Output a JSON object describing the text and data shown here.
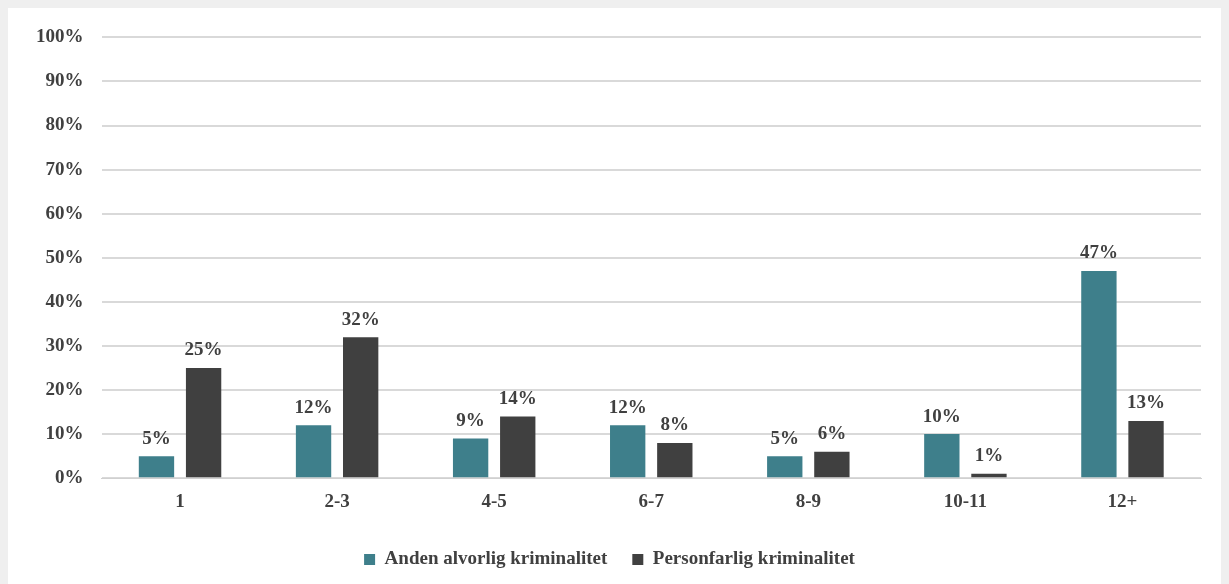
{
  "chart_data": {
    "type": "bar",
    "categories": [
      "1",
      "2-3",
      "4-5",
      "6-7",
      "8-9",
      "10-11",
      "12+"
    ],
    "series": [
      {
        "name": "Anden alvorlig kriminalitet",
        "color": "#3e7f8b",
        "values": [
          5,
          12,
          9,
          12,
          5,
          10,
          47
        ],
        "value_labels": [
          "5%",
          "12%",
          "9%",
          "12%",
          "5%",
          "10%",
          "47%"
        ]
      },
      {
        "name": "Personfarlig kriminalitet",
        "color": "#404040",
        "values": [
          25,
          32,
          14,
          8,
          6,
          1,
          13
        ],
        "value_labels": [
          "25%",
          "32%",
          "14%",
          "8%",
          "6%",
          "1%",
          "13%"
        ]
      }
    ],
    "ylim": [
      0,
      100
    ],
    "yticks": [
      {
        "value": 0,
        "label": "0%"
      },
      {
        "value": 10,
        "label": "10%"
      },
      {
        "value": 20,
        "label": "20%"
      },
      {
        "value": 30,
        "label": "30%"
      },
      {
        "value": 40,
        "label": "40%"
      },
      {
        "value": 50,
        "label": "50%"
      },
      {
        "value": 60,
        "label": "60%"
      },
      {
        "value": 70,
        "label": "70%"
      },
      {
        "value": 80,
        "label": "80%"
      },
      {
        "value": 90,
        "label": "90%"
      },
      {
        "value": 100,
        "label": "100%"
      }
    ],
    "grid": "y",
    "legend": "bottom"
  }
}
